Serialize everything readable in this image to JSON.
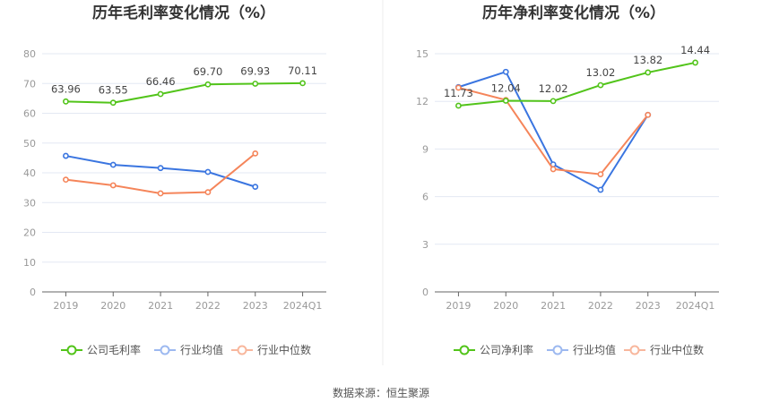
{
  "footer": {
    "source": "数据来源：恒生聚源"
  },
  "colors": {
    "company": "#52c41a",
    "avg": "#3a75e0",
    "median": "#f5855a",
    "grid": "#e3e8f3",
    "axis": "#666"
  },
  "chart_data": [
    {
      "type": "line",
      "title": "历年毛利率变化情况（%）",
      "categories": [
        "2019",
        "2020",
        "2021",
        "2022",
        "2023",
        "2024Q1"
      ],
      "ylim": [
        0,
        80
      ],
      "yticks": [
        0,
        10,
        20,
        30,
        40,
        50,
        60,
        70,
        80
      ],
      "grid": true,
      "legend": "bottom",
      "series": [
        {
          "name": "公司毛利率",
          "color": "#52c41a",
          "values": [
            63.96,
            63.55,
            66.46,
            69.7,
            69.93,
            70.11
          ],
          "labels": [
            "63.96",
            "63.55",
            "66.46",
            "69.70",
            "69.93",
            "70.11"
          ]
        },
        {
          "name": "行业均值",
          "color": "#3a75e0",
          "values": [
            45.7,
            42.7,
            41.6,
            40.3,
            35.3,
            null
          ]
        },
        {
          "name": "行业中位数",
          "color": "#f5855a",
          "values": [
            37.7,
            35.8,
            33.1,
            33.5,
            46.5,
            null
          ]
        }
      ]
    },
    {
      "type": "line",
      "title": "历年净利率变化情况（%）",
      "categories": [
        "2019",
        "2020",
        "2021",
        "2022",
        "2023",
        "2024Q1"
      ],
      "ylim": [
        0,
        15
      ],
      "yticks": [
        0,
        3,
        6,
        9,
        12,
        15
      ],
      "grid": true,
      "legend": "bottom",
      "series": [
        {
          "name": "公司净利率",
          "color": "#52c41a",
          "values": [
            11.73,
            12.04,
            12.02,
            13.02,
            13.82,
            14.44
          ],
          "labels": [
            "11.73",
            "12.04",
            "12.02",
            "13.02",
            "13.82",
            "14.44"
          ]
        },
        {
          "name": "行业均值",
          "color": "#3a75e0",
          "values": [
            12.9,
            13.86,
            8.03,
            6.43,
            11.15,
            null
          ]
        },
        {
          "name": "行业中位数",
          "color": "#f5855a",
          "values": [
            12.86,
            12.09,
            7.73,
            7.41,
            11.15,
            null
          ]
        }
      ]
    }
  ]
}
